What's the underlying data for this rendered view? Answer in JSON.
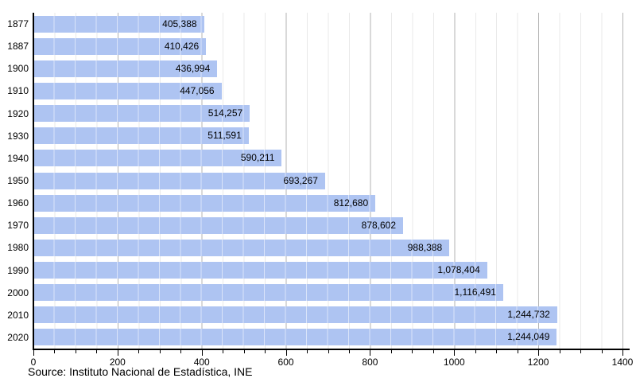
{
  "chart_data": {
    "type": "bar",
    "orientation": "horizontal",
    "title": "",
    "xlabel": "",
    "ylabel": "",
    "categories": [
      "1877",
      "1887",
      "1900",
      "1910",
      "1920",
      "1930",
      "1940",
      "1950",
      "1960",
      "1970",
      "1980",
      "1990",
      "2000",
      "2010",
      "2020"
    ],
    "values": [
      405388,
      410426,
      436994,
      447056,
      514257,
      511591,
      590211,
      693267,
      812680,
      878602,
      988388,
      1078404,
      1116491,
      1244732,
      1244049
    ],
    "value_labels": [
      "405,388",
      "410,426",
      "436,994",
      "447,056",
      "514,257",
      "511,591",
      "590,211",
      "693,267",
      "812,680",
      "878,602",
      "988,388",
      "1,078,404",
      "1,116,491",
      "1,244,732",
      "1,244,049"
    ],
    "x_axis": {
      "min": 0,
      "max": 1400,
      "unit_scale": 1000,
      "major_tick_step": 200,
      "minor_tick_step": 50,
      "tick_labels": [
        "0",
        "200",
        "400",
        "600",
        "800",
        "1000",
        "1200",
        "1400"
      ]
    },
    "grid": true,
    "legend": false
  },
  "source": {
    "text": "Source: Instituto Nacional de Estadística, INE"
  },
  "colors": {
    "bar_fill": "#aec4f2",
    "grid_in_bar": "rgba(255,255,255,0.55)",
    "grid_minor": "#e9e9e9",
    "grid_major": "#b3b3b3",
    "axis": "#000000",
    "text": "#000000"
  }
}
